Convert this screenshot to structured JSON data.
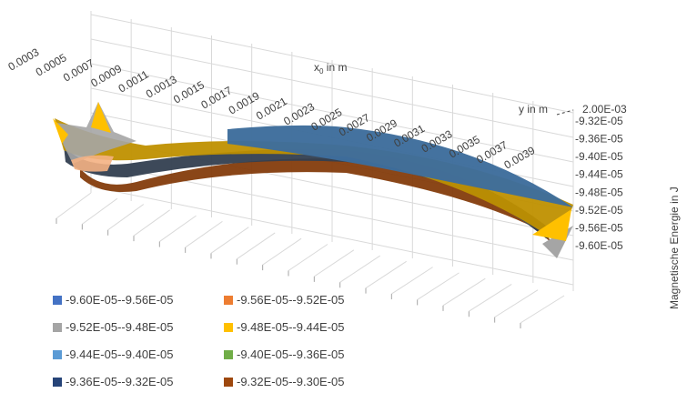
{
  "chart_data": {
    "type": "surface",
    "xlabel_base": "x",
    "xlabel_sub": "0",
    "xlabel_rest": "  in m",
    "ylabel": "y in m",
    "zlabel": "Magnetische Energie in J",
    "x_ticks": [
      "0.0003",
      "0.0005",
      "0.0007",
      "0.0009",
      "0.0011",
      "0.0013",
      "0.0015",
      "0.0017",
      "0.0019",
      "0.0021",
      "0.0023",
      "0.0025",
      "0.0027",
      "0.0029",
      "0.0031",
      "0.0033",
      "0.0035",
      "0.0037",
      "0.0039"
    ],
    "y_tick": "2.00E-03",
    "z_ticks": [
      "-9.32E-05",
      "-9.36E-05",
      "-9.40E-05",
      "-9.44E-05",
      "-9.48E-05",
      "-9.52E-05",
      "-9.56E-05",
      "-9.60E-05"
    ],
    "zlim": [
      -9.6e-05,
      -9.32e-05
    ],
    "legend": [
      {
        "label": "-9.60E-05--9.56E-05",
        "color": "#4472c4"
      },
      {
        "label": "-9.56E-05--9.52E-05",
        "color": "#ed7d31"
      },
      {
        "label": "-9.52E-05--9.48E-05",
        "color": "#a5a5a5"
      },
      {
        "label": "-9.48E-05--9.44E-05",
        "color": "#ffc000"
      },
      {
        "label": "-9.44E-05--9.40E-05",
        "color": "#5b9bd5"
      },
      {
        "label": "-9.40E-05--9.36E-05",
        "color": "#70ad47"
      },
      {
        "label": "-9.36E-05--9.32E-05",
        "color": "#264478"
      },
      {
        "label": "-9.32E-05--9.30E-05",
        "color": "#9e480e"
      }
    ]
  }
}
